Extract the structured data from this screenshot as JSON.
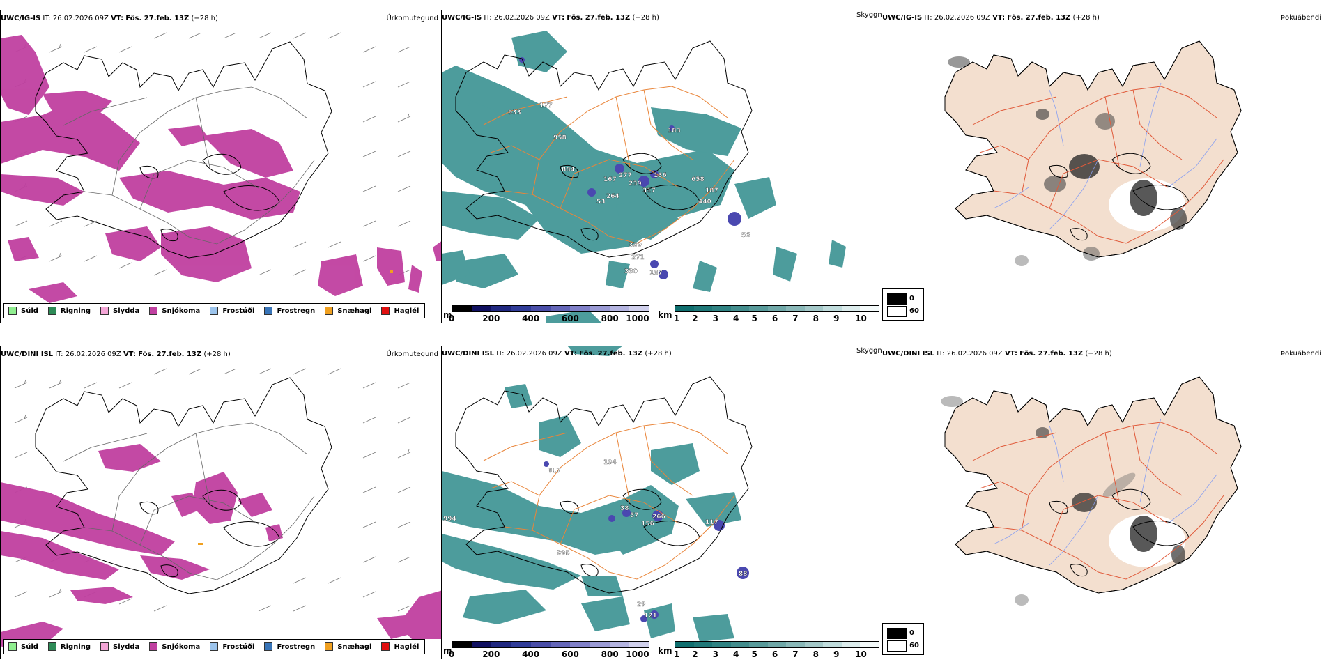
{
  "rows": [
    {
      "model": "UWC/IG-IS",
      "it_label": "IT:",
      "it_value": "26.02.2026 09Z",
      "vt_label": "VT:",
      "vt_value": "Fös. 27.feb. 13Z",
      "lead": "(+28 h)",
      "visibility_values": [
        "933",
        "177",
        "958",
        "884",
        "167",
        "277",
        "239",
        "136",
        "658",
        "187",
        "264",
        "53",
        "317",
        "440",
        "339",
        "271",
        "330",
        "187",
        "56",
        "183"
      ],
      "cloud_values": [
        "1",
        "2",
        "3"
      ]
    },
    {
      "model": "UWC/DINI ISL",
      "it_label": "IT:",
      "it_value": "26.02.2026 09Z",
      "vt_label": "VT:",
      "vt_value": "Fös. 27.feb. 13Z",
      "lead": "(+28 h)",
      "visibility_values": [
        "817",
        "194",
        "994",
        "38",
        "57",
        "266",
        "156",
        "117",
        "395",
        "29",
        "121",
        "88"
      ],
      "cloud_values": [
        "1"
      ]
    }
  ],
  "panel_titles": {
    "precip_type": "Úrkomutegund",
    "visibility": "Skyggni",
    "fog": "Þokuábendi"
  },
  "precip_legend": [
    {
      "label": "Súld",
      "color": "#90ee90"
    },
    {
      "label": "Rigning",
      "color": "#2e8b57"
    },
    {
      "label": "Slydda",
      "color": "#f4a6d7"
    },
    {
      "label": "Snjókoma",
      "color": "#c040a0"
    },
    {
      "label": "Frostúði",
      "color": "#9cc4ec"
    },
    {
      "label": "Frostregn",
      "color": "#3874b8"
    },
    {
      "label": "Snæhagl",
      "color": "#f0a020"
    },
    {
      "label": "Haglél",
      "color": "#e01010"
    }
  ],
  "ceiling_bar": {
    "unit": "m",
    "ticks": [
      "0",
      "200",
      "400",
      "600",
      "800",
      "1000"
    ],
    "colors": [
      "#000000",
      "#101060",
      "#202880",
      "#303c98",
      "#4a4ea8",
      "#6466b8",
      "#8080c8",
      "#9a9ad4",
      "#b4b4e0",
      "#d0d0ec"
    ]
  },
  "visibility_bar": {
    "unit": "km",
    "ticks": [
      "1",
      "2",
      "3",
      "4",
      "5",
      "6",
      "7",
      "8",
      "9",
      "10"
    ],
    "colors": [
      "#0f6e6e",
      "#1f7878",
      "#2f8282",
      "#438d8d",
      "#589a9a",
      "#70a8a8",
      "#8ab8b8",
      "#a4c8c8",
      "#c0dcdc",
      "#dcecec",
      "#f4fafa"
    ]
  },
  "fog_legend": {
    "black_label": "0",
    "white_label": "60"
  },
  "colors": {
    "snow": "#c040a0",
    "vis_teal": "#2e8b8b",
    "ceiling_blue": "#4a48b0",
    "fog_land": "#f3dfcf",
    "roads": "#e9853a",
    "fog_roads": "#e05a3a",
    "rivers": "#8aa0f0"
  }
}
